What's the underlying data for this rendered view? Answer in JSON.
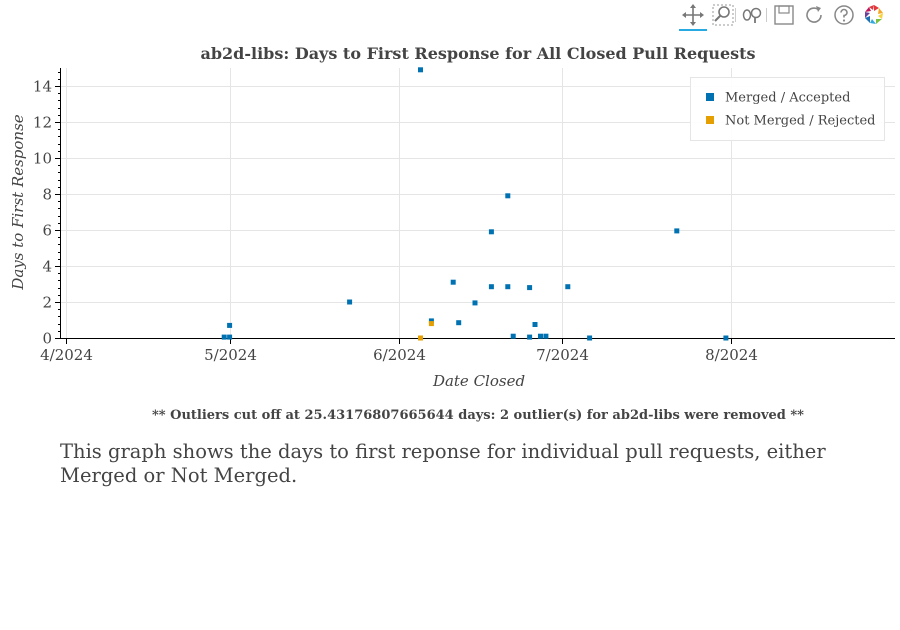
{
  "toolbar": {
    "tools": [
      {
        "name": "pan-icon",
        "active": true
      },
      {
        "name": "box-zoom-icon",
        "active": false
      },
      {
        "name": "wheel-zoom-icon",
        "active": false
      },
      {
        "name": "save-icon",
        "active": false
      },
      {
        "name": "reset-icon",
        "active": false
      },
      {
        "name": "help-icon",
        "active": false
      },
      {
        "name": "bokeh-logo-icon",
        "active": false
      }
    ]
  },
  "chart_data": {
    "type": "scatter",
    "title": "ab2d-libs: Days to First Response for All Closed Pull Requests",
    "xlabel": "Date Closed",
    "ylabel": "Days to First Response",
    "x_type": "date",
    "xlim": [
      "2024-04-01",
      "2024-08-31"
    ],
    "ylim": [
      0,
      15
    ],
    "x_ticks": [
      "2024-04-01",
      "2024-05-01",
      "2024-06-01",
      "2024-07-01",
      "2024-08-01"
    ],
    "x_tick_labels": [
      "4/2024",
      "5/2024",
      "6/2024",
      "7/2024",
      "8/2024"
    ],
    "y_ticks": [
      0,
      2,
      4,
      6,
      8,
      10,
      12,
      14
    ],
    "y_tick_labels": [
      "0",
      "2",
      "4",
      "6",
      "8",
      "10",
      "12",
      "14"
    ],
    "grid": true,
    "legend_position": "top-right",
    "series": [
      {
        "name": "Merged / Accepted",
        "color": "#0072B2",
        "points": [
          {
            "x": "2024-04-30",
            "y": 0.05
          },
          {
            "x": "2024-05-01",
            "y": 0.05
          },
          {
            "x": "2024-05-01",
            "y": 0.7
          },
          {
            "x": "2024-05-23",
            "y": 2.0
          },
          {
            "x": "2024-06-05",
            "y": 14.9
          },
          {
            "x": "2024-06-07",
            "y": 0.95
          },
          {
            "x": "2024-06-11",
            "y": 3.1
          },
          {
            "x": "2024-06-12",
            "y": 0.85
          },
          {
            "x": "2024-06-15",
            "y": 1.95
          },
          {
            "x": "2024-06-18",
            "y": 5.9
          },
          {
            "x": "2024-06-18",
            "y": 2.85
          },
          {
            "x": "2024-06-21",
            "y": 2.85
          },
          {
            "x": "2024-06-21",
            "y": 7.9
          },
          {
            "x": "2024-06-22",
            "y": 0.1
          },
          {
            "x": "2024-06-25",
            "y": 2.8
          },
          {
            "x": "2024-06-25",
            "y": 0.05
          },
          {
            "x": "2024-06-26",
            "y": 0.75
          },
          {
            "x": "2024-06-27",
            "y": 0.1
          },
          {
            "x": "2024-06-28",
            "y": 0.1
          },
          {
            "x": "2024-07-02",
            "y": 2.85
          },
          {
            "x": "2024-07-06",
            "y": 0.0
          },
          {
            "x": "2024-07-22",
            "y": 5.95
          },
          {
            "x": "2024-07-31",
            "y": 0.0
          }
        ]
      },
      {
        "name": "Not Merged / Rejected",
        "color": "#E69F00",
        "points": [
          {
            "x": "2024-06-05",
            "y": 0.0
          },
          {
            "x": "2024-06-07",
            "y": 0.8
          }
        ]
      }
    ]
  },
  "footnote": "** Outliers cut off at 25.43176807665644 days: 2 outlier(s) for ab2d-libs were removed **",
  "description": "This graph shows the days to first reponse for individual pull requests, either Merged or Not Merged."
}
